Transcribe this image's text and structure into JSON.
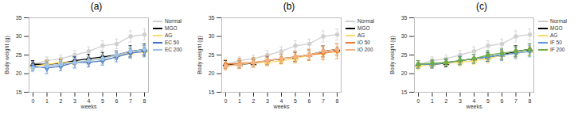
{
  "chart_data": [
    {
      "type": "line",
      "title": "(a)",
      "x_label": "weeks",
      "y_label": "Body weight (g)",
      "x": [
        0,
        1,
        2,
        3,
        4,
        5,
        6,
        7,
        8
      ],
      "xlim": [
        0,
        8
      ],
      "xticks": [
        0,
        1,
        2,
        3,
        4,
        5,
        6,
        7,
        8
      ],
      "ylim": [
        15,
        35
      ],
      "yticks": [
        15,
        20,
        25,
        30,
        35
      ],
      "legend": "right",
      "series": [
        {
          "name": "Normal",
          "color": "#d0d0d0",
          "marker": "circle",
          "values": [
            22.5,
            23.5,
            24,
            25,
            26,
            27.5,
            28,
            30,
            30.5
          ],
          "errors": [
            1,
            1,
            1,
            1.2,
            1.2,
            1.3,
            1.3,
            1.5,
            1.5
          ]
        },
        {
          "name": "MGO",
          "color": "#000000",
          "marker": "triangle",
          "values": [
            22.5,
            22.5,
            22.8,
            23.5,
            24,
            24.5,
            25,
            26,
            26.5
          ],
          "errors": [
            1,
            1,
            1,
            1,
            1.2,
            1.2,
            1.2,
            1.5,
            1.5
          ]
        },
        {
          "name": "AG",
          "color": "#ffd966",
          "marker": "triangle",
          "values": [
            22,
            22.5,
            23,
            23,
            23.5,
            24,
            25,
            25.5,
            26
          ],
          "errors": [
            1,
            1,
            1,
            1,
            1,
            1.2,
            1.2,
            1.3,
            1.3
          ]
        },
        {
          "name": "EC 50",
          "color": "#4472c4",
          "marker": "diamond",
          "values": [
            22,
            21.5,
            22,
            23,
            23,
            23.5,
            24.5,
            25.5,
            26
          ],
          "errors": [
            1.2,
            1.5,
            1.2,
            1.5,
            1.2,
            1.2,
            1.3,
            1.3,
            1.5
          ]
        },
        {
          "name": "EC 200",
          "color": "#9dc3e6",
          "marker": "circle",
          "values": [
            21.5,
            22,
            22.5,
            23,
            23.5,
            24,
            25,
            26,
            26.5
          ],
          "errors": [
            1,
            1,
            1,
            1,
            1,
            1.2,
            1.2,
            1.3,
            1.3
          ]
        }
      ]
    },
    {
      "type": "line",
      "title": "(b)",
      "x_label": "weeks",
      "y_label": "Body weight (g)",
      "x": [
        0,
        1,
        2,
        3,
        4,
        5,
        6,
        7,
        8
      ],
      "xlim": [
        0,
        8
      ],
      "xticks": [
        0,
        1,
        2,
        3,
        4,
        5,
        6,
        7,
        8
      ],
      "ylim": [
        15,
        35
      ],
      "yticks": [
        15,
        20,
        25,
        30,
        35
      ],
      "legend": "right",
      "series": [
        {
          "name": "Normal",
          "color": "#d0d0d0",
          "marker": "circle",
          "values": [
            22.5,
            23.5,
            24,
            25,
            26,
            27.5,
            28,
            30,
            30.5
          ],
          "errors": [
            1,
            1,
            1,
            1.2,
            1.2,
            1.3,
            1.3,
            1.5,
            1.5
          ]
        },
        {
          "name": "MGO",
          "color": "#000000",
          "marker": "triangle",
          "values": [
            22.5,
            22.5,
            22.8,
            23.5,
            24,
            24.5,
            25,
            26,
            26.5
          ],
          "errors": [
            1,
            1,
            1,
            1,
            1.2,
            1.2,
            1.2,
            1.5,
            1.5
          ]
        },
        {
          "name": "AG",
          "color": "#ffd966",
          "marker": "triangle",
          "values": [
            22,
            22.5,
            23,
            23,
            23.5,
            24,
            25,
            25.5,
            26
          ],
          "errors": [
            1,
            1,
            1,
            1,
            1,
            1.2,
            1.2,
            1.3,
            1.3
          ]
        },
        {
          "name": "IO 50",
          "color": "#ed7d31",
          "marker": "diamond",
          "values": [
            22.5,
            22.8,
            23,
            23.5,
            24,
            24.5,
            25,
            25.5,
            26
          ],
          "errors": [
            1.2,
            1.3,
            1.3,
            1.3,
            1.3,
            1.5,
            1.5,
            1.8,
            2
          ]
        },
        {
          "name": "IO 200",
          "color": "#f4b183",
          "marker": "circle",
          "values": [
            22,
            22.5,
            23,
            23.5,
            24,
            24.5,
            25,
            26,
            26.5
          ],
          "errors": [
            1,
            1.2,
            1.2,
            1.2,
            1.2,
            1.3,
            1.3,
            1.5,
            1.5
          ]
        }
      ]
    },
    {
      "type": "line",
      "title": "(c)",
      "x_label": "weeks",
      "y_label": "Body weight (g)",
      "x": [
        0,
        1,
        2,
        3,
        4,
        5,
        6,
        7,
        8
      ],
      "xlim": [
        0,
        8
      ],
      "xticks": [
        0,
        1,
        2,
        3,
        4,
        5,
        6,
        7,
        8
      ],
      "ylim": [
        15,
        35
      ],
      "yticks": [
        15,
        20,
        25,
        30,
        35
      ],
      "legend": "right",
      "series": [
        {
          "name": "Normal",
          "color": "#d0d0d0",
          "marker": "circle",
          "values": [
            22.5,
            23.5,
            24,
            25,
            26,
            27.5,
            28,
            30,
            30.5
          ],
          "errors": [
            1,
            1,
            1,
            1.2,
            1.2,
            1.3,
            1.3,
            1.5,
            1.5
          ]
        },
        {
          "name": "MGO",
          "color": "#000000",
          "marker": "triangle",
          "values": [
            22.5,
            22.5,
            22.8,
            23.5,
            24,
            24.5,
            25,
            26,
            26.5
          ],
          "errors": [
            1,
            1,
            1,
            1,
            1.2,
            1.2,
            1.2,
            1.5,
            1.5
          ]
        },
        {
          "name": "AG",
          "color": "#ffd966",
          "marker": "triangle",
          "values": [
            22,
            22.5,
            23,
            23,
            23.5,
            24,
            25,
            25.5,
            26
          ],
          "errors": [
            1,
            1,
            1,
            1,
            1,
            1.2,
            1.2,
            1.3,
            1.3
          ]
        },
        {
          "name": "IF 50",
          "color": "#5b9bd5",
          "marker": "diamond",
          "values": [
            22.5,
            22.5,
            23,
            23.5,
            24,
            24.5,
            25,
            25.5,
            26
          ],
          "errors": [
            1,
            1,
            1,
            1.2,
            1.2,
            1.3,
            1.5,
            1.5,
            1.5
          ]
        },
        {
          "name": "IF 200",
          "color": "#70ad47",
          "marker": "circle",
          "values": [
            22.5,
            22.8,
            23,
            23.5,
            24,
            25,
            25.5,
            26,
            26.5
          ],
          "errors": [
            1,
            1,
            1,
            1,
            1.2,
            1.2,
            1.3,
            1.3,
            1.5
          ]
        }
      ]
    }
  ]
}
